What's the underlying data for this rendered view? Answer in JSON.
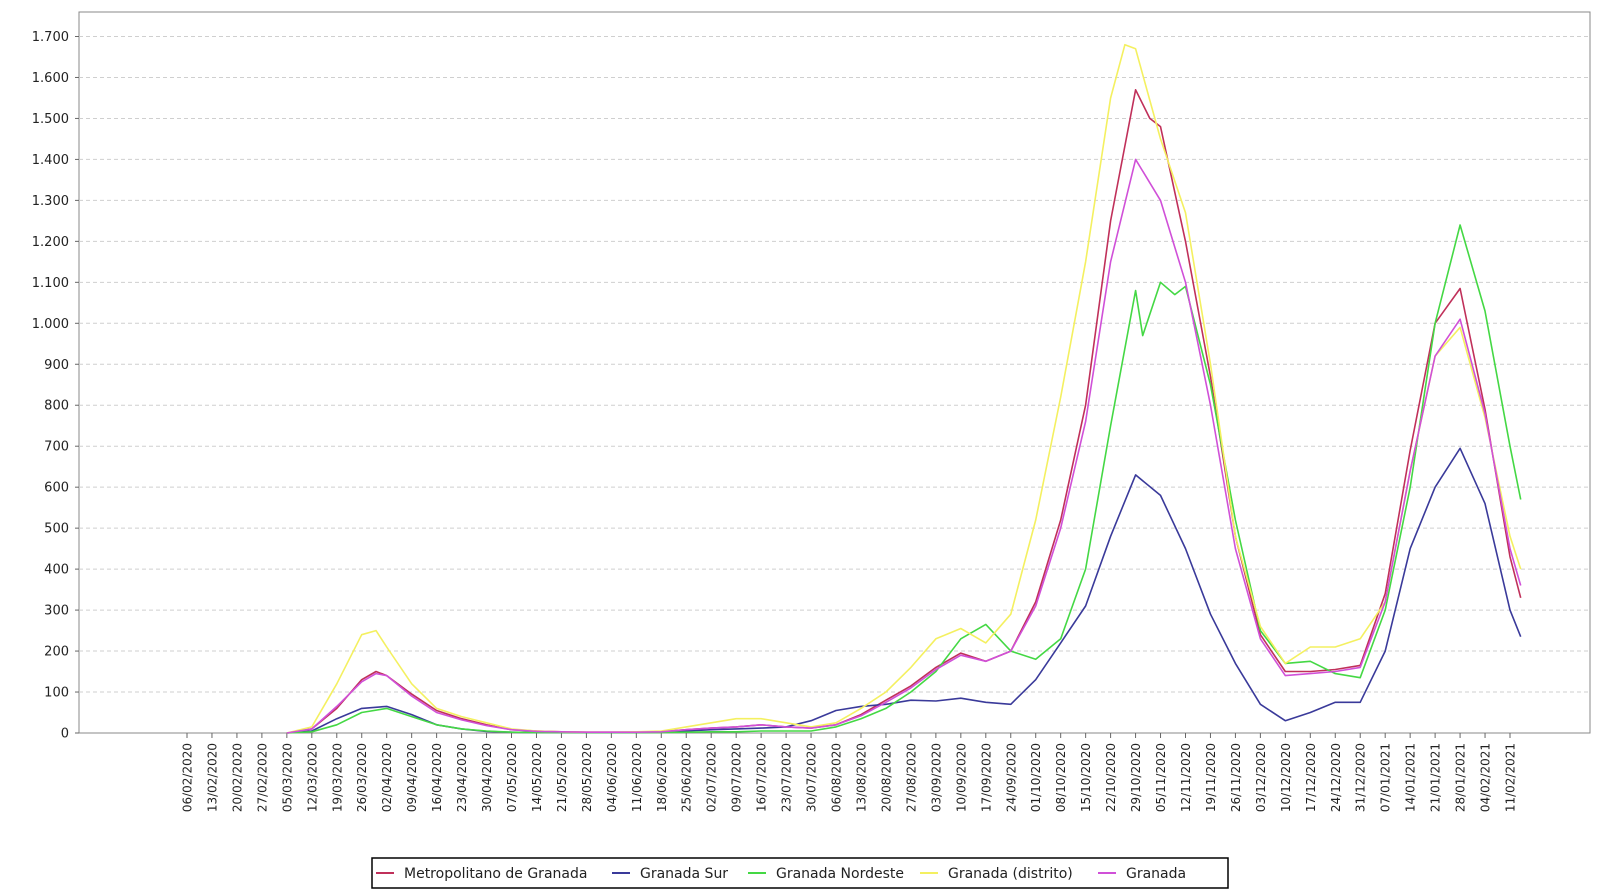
{
  "chart_data": {
    "type": "line",
    "title": "",
    "xlabel": "",
    "ylabel": "",
    "ylim": [
      0,
      1700
    ],
    "grid": true,
    "legend_position": "bottom",
    "y_ticks": [
      0,
      100,
      200,
      300,
      400,
      500,
      600,
      700,
      800,
      900,
      1000,
      1100,
      1200,
      1300,
      1400,
      1500,
      1600,
      1700
    ],
    "y_tick_labels": [
      "0",
      "100",
      "200",
      "300",
      "400",
      "500",
      "600",
      "700",
      "800",
      "900",
      "1.000",
      "1.100",
      "1.200",
      "1.300",
      "1.400",
      "1.500",
      "1.600",
      "1.700"
    ],
    "x_tick_labels": [
      "06/02/2020",
      "13/02/2020",
      "20/02/2020",
      "27/02/2020",
      "05/03/2020",
      "12/03/2020",
      "19/03/2020",
      "26/03/2020",
      "02/04/2020",
      "09/04/2020",
      "16/04/2020",
      "23/04/2020",
      "30/04/2020",
      "07/05/2020",
      "14/05/2020",
      "21/05/2020",
      "28/05/2020",
      "04/06/2020",
      "11/06/2020",
      "18/06/2020",
      "25/06/2020",
      "02/07/2020",
      "09/07/2020",
      "16/07/2020",
      "23/07/2020",
      "30/07/2020",
      "06/08/2020",
      "13/08/2020",
      "20/08/2020",
      "27/08/2020",
      "03/09/2020",
      "10/09/2020",
      "17/09/2020",
      "24/09/2020",
      "01/10/2020",
      "08/10/2020",
      "15/10/2020",
      "22/10/2020",
      "29/10/2020",
      "05/11/2020",
      "12/11/2020",
      "19/11/2020",
      "26/11/2020",
      "03/12/2020",
      "10/12/2020",
      "17/12/2020",
      "24/12/2020",
      "31/12/2020",
      "07/01/2021",
      "14/01/2021",
      "21/01/2021",
      "28/01/2021",
      "04/02/2021",
      "11/02/2021"
    ],
    "series": [
      {
        "name": "Metropolitano de Granada",
        "color": "#c0305a",
        "points": [
          [
            "05/03/2020",
            0
          ],
          [
            "12/03/2020",
            10
          ],
          [
            "19/03/2020",
            60
          ],
          [
            "26/03/2020",
            130
          ],
          [
            "30/03/2020",
            150
          ],
          [
            "02/04/2020",
            140
          ],
          [
            "09/04/2020",
            95
          ],
          [
            "16/04/2020",
            55
          ],
          [
            "23/04/2020",
            35
          ],
          [
            "30/04/2020",
            20
          ],
          [
            "07/05/2020",
            8
          ],
          [
            "14/05/2020",
            5
          ],
          [
            "21/05/2020",
            3
          ],
          [
            "28/05/2020",
            2
          ],
          [
            "04/06/2020",
            2
          ],
          [
            "11/06/2020",
            2
          ],
          [
            "18/06/2020",
            3
          ],
          [
            "25/06/2020",
            8
          ],
          [
            "02/07/2020",
            12
          ],
          [
            "09/07/2020",
            15
          ],
          [
            "16/07/2020",
            20
          ],
          [
            "23/07/2020",
            15
          ],
          [
            "30/07/2020",
            12
          ],
          [
            "06/08/2020",
            20
          ],
          [
            "13/08/2020",
            45
          ],
          [
            "20/08/2020",
            80
          ],
          [
            "27/08/2020",
            115
          ],
          [
            "03/09/2020",
            160
          ],
          [
            "10/09/2020",
            195
          ],
          [
            "17/09/2020",
            175
          ],
          [
            "24/09/2020",
            200
          ],
          [
            "01/10/2020",
            320
          ],
          [
            "08/10/2020",
            520
          ],
          [
            "15/10/2020",
            800
          ],
          [
            "22/10/2020",
            1250
          ],
          [
            "29/10/2020",
            1570
          ],
          [
            "02/11/2020",
            1500
          ],
          [
            "05/11/2020",
            1480
          ],
          [
            "12/11/2020",
            1200
          ],
          [
            "19/11/2020",
            870
          ],
          [
            "26/11/2020",
            480
          ],
          [
            "03/12/2020",
            240
          ],
          [
            "10/12/2020",
            150
          ],
          [
            "17/12/2020",
            150
          ],
          [
            "24/12/2020",
            155
          ],
          [
            "31/12/2020",
            165
          ],
          [
            "07/01/2021",
            340
          ],
          [
            "14/01/2021",
            690
          ],
          [
            "21/01/2021",
            1000
          ],
          [
            "28/01/2021",
            1085
          ],
          [
            "04/02/2021",
            790
          ],
          [
            "11/02/2021",
            430
          ],
          [
            "14/02/2021",
            330
          ]
        ]
      },
      {
        "name": "Granada Sur",
        "color": "#3a3a9a",
        "points": [
          [
            "05/03/2020",
            0
          ],
          [
            "12/03/2020",
            5
          ],
          [
            "19/03/2020",
            35
          ],
          [
            "26/03/2020",
            60
          ],
          [
            "02/04/2020",
            65
          ],
          [
            "09/04/2020",
            45
          ],
          [
            "16/04/2020",
            20
          ],
          [
            "23/04/2020",
            10
          ],
          [
            "30/04/2020",
            4
          ],
          [
            "07/05/2020",
            2
          ],
          [
            "14/05/2020",
            1
          ],
          [
            "21/05/2020",
            1
          ],
          [
            "28/05/2020",
            1
          ],
          [
            "04/06/2020",
            1
          ],
          [
            "11/06/2020",
            1
          ],
          [
            "18/06/2020",
            2
          ],
          [
            "25/06/2020",
            5
          ],
          [
            "02/07/2020",
            8
          ],
          [
            "09/07/2020",
            10
          ],
          [
            "16/07/2020",
            12
          ],
          [
            "23/07/2020",
            15
          ],
          [
            "30/07/2020",
            30
          ],
          [
            "06/08/2020",
            55
          ],
          [
            "13/08/2020",
            65
          ],
          [
            "20/08/2020",
            70
          ],
          [
            "27/08/2020",
            80
          ],
          [
            "03/09/2020",
            78
          ],
          [
            "10/09/2020",
            85
          ],
          [
            "17/09/2020",
            75
          ],
          [
            "24/09/2020",
            70
          ],
          [
            "01/10/2020",
            130
          ],
          [
            "08/10/2020",
            220
          ],
          [
            "15/10/2020",
            310
          ],
          [
            "22/10/2020",
            480
          ],
          [
            "29/10/2020",
            630
          ],
          [
            "05/11/2020",
            580
          ],
          [
            "12/11/2020",
            450
          ],
          [
            "19/11/2020",
            290
          ],
          [
            "26/11/2020",
            170
          ],
          [
            "03/12/2020",
            70
          ],
          [
            "10/12/2020",
            30
          ],
          [
            "17/12/2020",
            50
          ],
          [
            "24/12/2020",
            75
          ],
          [
            "31/12/2020",
            75
          ],
          [
            "07/01/2021",
            200
          ],
          [
            "14/01/2021",
            450
          ],
          [
            "21/01/2021",
            600
          ],
          [
            "28/01/2021",
            695
          ],
          [
            "04/02/2021",
            560
          ],
          [
            "11/02/2021",
            300
          ],
          [
            "14/02/2021",
            235
          ]
        ]
      },
      {
        "name": "Granada Nordeste",
        "color": "#44d844",
        "points": [
          [
            "05/03/2020",
            0
          ],
          [
            "12/03/2020",
            3
          ],
          [
            "19/03/2020",
            20
          ],
          [
            "26/03/2020",
            50
          ],
          [
            "02/04/2020",
            60
          ],
          [
            "09/04/2020",
            40
          ],
          [
            "16/04/2020",
            20
          ],
          [
            "23/04/2020",
            10
          ],
          [
            "30/04/2020",
            5
          ],
          [
            "07/05/2020",
            2
          ],
          [
            "14/05/2020",
            1
          ],
          [
            "21/05/2020",
            1
          ],
          [
            "28/05/2020",
            1
          ],
          [
            "04/06/2020",
            1
          ],
          [
            "11/06/2020",
            1
          ],
          [
            "18/06/2020",
            1
          ],
          [
            "25/06/2020",
            2
          ],
          [
            "02/07/2020",
            3
          ],
          [
            "09/07/2020",
            3
          ],
          [
            "16/07/2020",
            5
          ],
          [
            "23/07/2020",
            5
          ],
          [
            "30/07/2020",
            5
          ],
          [
            "06/08/2020",
            15
          ],
          [
            "13/08/2020",
            35
          ],
          [
            "20/08/2020",
            60
          ],
          [
            "27/08/2020",
            100
          ],
          [
            "03/09/2020",
            150
          ],
          [
            "10/09/2020",
            230
          ],
          [
            "17/09/2020",
            265
          ],
          [
            "24/09/2020",
            200
          ],
          [
            "01/10/2020",
            180
          ],
          [
            "08/10/2020",
            230
          ],
          [
            "15/10/2020",
            400
          ],
          [
            "22/10/2020",
            750
          ],
          [
            "29/10/2020",
            1080
          ],
          [
            "31/10/2020",
            970
          ],
          [
            "05/11/2020",
            1100
          ],
          [
            "09/11/2020",
            1070
          ],
          [
            "12/11/2020",
            1090
          ],
          [
            "19/11/2020",
            850
          ],
          [
            "26/11/2020",
            520
          ],
          [
            "03/12/2020",
            250
          ],
          [
            "10/12/2020",
            170
          ],
          [
            "17/12/2020",
            175
          ],
          [
            "24/12/2020",
            145
          ],
          [
            "31/12/2020",
            135
          ],
          [
            "07/01/2021",
            300
          ],
          [
            "14/01/2021",
            600
          ],
          [
            "21/01/2021",
            1000
          ],
          [
            "28/01/2021",
            1240
          ],
          [
            "04/02/2021",
            1030
          ],
          [
            "11/02/2021",
            700
          ],
          [
            "14/02/2021",
            570
          ]
        ]
      },
      {
        "name": "Granada (distrito)",
        "color": "#f4f060",
        "points": [
          [
            "05/03/2020",
            0
          ],
          [
            "12/03/2020",
            15
          ],
          [
            "19/03/2020",
            120
          ],
          [
            "26/03/2020",
            240
          ],
          [
            "30/03/2020",
            250
          ],
          [
            "02/04/2020",
            210
          ],
          [
            "09/04/2020",
            120
          ],
          [
            "16/04/2020",
            60
          ],
          [
            "23/04/2020",
            40
          ],
          [
            "30/04/2020",
            25
          ],
          [
            "07/05/2020",
            10
          ],
          [
            "14/05/2020",
            5
          ],
          [
            "21/05/2020",
            3
          ],
          [
            "28/05/2020",
            2
          ],
          [
            "04/06/2020",
            2
          ],
          [
            "11/06/2020",
            3
          ],
          [
            "18/06/2020",
            5
          ],
          [
            "25/06/2020",
            15
          ],
          [
            "02/07/2020",
            25
          ],
          [
            "09/07/2020",
            35
          ],
          [
            "16/07/2020",
            35
          ],
          [
            "23/07/2020",
            25
          ],
          [
            "30/07/2020",
            15
          ],
          [
            "06/08/2020",
            25
          ],
          [
            "13/08/2020",
            60
          ],
          [
            "20/08/2020",
            100
          ],
          [
            "27/08/2020",
            160
          ],
          [
            "03/09/2020",
            230
          ],
          [
            "10/09/2020",
            255
          ],
          [
            "17/09/2020",
            220
          ],
          [
            "24/09/2020",
            290
          ],
          [
            "01/10/2020",
            520
          ],
          [
            "08/10/2020",
            820
          ],
          [
            "15/10/2020",
            1150
          ],
          [
            "22/10/2020",
            1550
          ],
          [
            "26/10/2020",
            1680
          ],
          [
            "29/10/2020",
            1670
          ],
          [
            "05/11/2020",
            1450
          ],
          [
            "12/11/2020",
            1270
          ],
          [
            "19/11/2020",
            900
          ],
          [
            "26/11/2020",
            480
          ],
          [
            "03/12/2020",
            260
          ],
          [
            "10/12/2020",
            170
          ],
          [
            "17/12/2020",
            210
          ],
          [
            "24/12/2020",
            210
          ],
          [
            "31/12/2020",
            230
          ],
          [
            "07/01/2021",
            320
          ],
          [
            "14/01/2021",
            640
          ],
          [
            "21/01/2021",
            920
          ],
          [
            "28/01/2021",
            990
          ],
          [
            "04/02/2021",
            770
          ],
          [
            "11/02/2021",
            480
          ],
          [
            "14/02/2021",
            400
          ]
        ]
      },
      {
        "name": "Granada",
        "color": "#d050d8",
        "points": [
          [
            "05/03/2020",
            0
          ],
          [
            "12/03/2020",
            10
          ],
          [
            "19/03/2020",
            65
          ],
          [
            "26/03/2020",
            125
          ],
          [
            "30/03/2020",
            145
          ],
          [
            "02/04/2020",
            140
          ],
          [
            "09/04/2020",
            90
          ],
          [
            "16/04/2020",
            50
          ],
          [
            "23/04/2020",
            32
          ],
          [
            "30/04/2020",
            18
          ],
          [
            "07/05/2020",
            8
          ],
          [
            "14/05/2020",
            4
          ],
          [
            "21/05/2020",
            3
          ],
          [
            "28/05/2020",
            2
          ],
          [
            "04/06/2020",
            2
          ],
          [
            "11/06/2020",
            2
          ],
          [
            "18/06/2020",
            3
          ],
          [
            "25/06/2020",
            8
          ],
          [
            "02/07/2020",
            12
          ],
          [
            "09/07/2020",
            15
          ],
          [
            "16/07/2020",
            20
          ],
          [
            "23/07/2020",
            15
          ],
          [
            "30/07/2020",
            12
          ],
          [
            "06/08/2020",
            20
          ],
          [
            "13/08/2020",
            42
          ],
          [
            "20/08/2020",
            75
          ],
          [
            "27/08/2020",
            110
          ],
          [
            "03/09/2020",
            155
          ],
          [
            "10/09/2020",
            190
          ],
          [
            "17/09/2020",
            175
          ],
          [
            "24/09/2020",
            200
          ],
          [
            "01/10/2020",
            310
          ],
          [
            "08/10/2020",
            500
          ],
          [
            "15/10/2020",
            760
          ],
          [
            "22/10/2020",
            1150
          ],
          [
            "29/10/2020",
            1400
          ],
          [
            "05/11/2020",
            1300
          ],
          [
            "12/11/2020",
            1100
          ],
          [
            "19/11/2020",
            800
          ],
          [
            "26/11/2020",
            450
          ],
          [
            "03/12/2020",
            230
          ],
          [
            "10/12/2020",
            140
          ],
          [
            "17/12/2020",
            145
          ],
          [
            "24/12/2020",
            150
          ],
          [
            "31/12/2020",
            160
          ],
          [
            "07/01/2021",
            320
          ],
          [
            "14/01/2021",
            640
          ],
          [
            "21/01/2021",
            920
          ],
          [
            "28/01/2021",
            1010
          ],
          [
            "04/02/2021",
            780
          ],
          [
            "11/02/2021",
            450
          ],
          [
            "14/02/2021",
            360
          ]
        ]
      }
    ]
  }
}
